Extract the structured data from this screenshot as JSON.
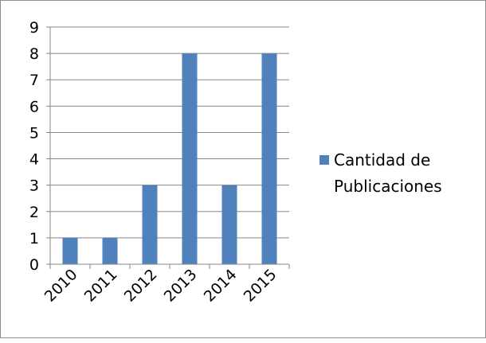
{
  "chart_data": {
    "type": "bar",
    "title": "",
    "xlabel": "",
    "ylabel": "",
    "categories": [
      "2010",
      "2011",
      "2012",
      "2013",
      "2014",
      "2015"
    ],
    "series": [
      {
        "name": "Cantidad de Publicaciones",
        "values": [
          1,
          1,
          3,
          8,
          3,
          8
        ],
        "color": "#4f81bd"
      }
    ],
    "ylim": [
      0,
      9
    ],
    "yticks": [
      "0",
      "1",
      "2",
      "3",
      "4",
      "5",
      "6",
      "7",
      "8",
      "9"
    ],
    "grid": true,
    "legend_position": "right",
    "legend_lines": [
      "Cantidad de",
      "Publicaciones"
    ]
  }
}
